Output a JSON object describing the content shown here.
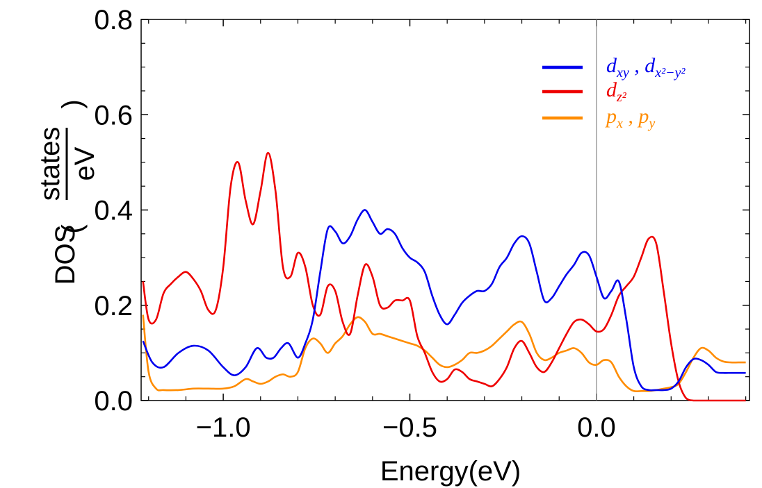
{
  "chart_data": {
    "type": "line",
    "title": "",
    "xlabel": "Energy(eV)",
    "ylabel": {
      "prefix": "DOS",
      "numerator": "states",
      "denominator": "eV"
    },
    "xlim": [
      -1.22,
      0.41
    ],
    "ylim": [
      0.0,
      0.8
    ],
    "x_ticks": [
      -1.0,
      -0.5,
      0.0
    ],
    "x_tick_labels": [
      "−1.0",
      "−0.5",
      "0.0"
    ],
    "y_ticks": [
      0.0,
      0.2,
      0.4,
      0.6,
      0.8
    ],
    "y_tick_labels": [
      "0.0",
      "0.2",
      "0.4",
      "0.6",
      "0.8"
    ],
    "fermi_level": 0.0,
    "legend_position": "top-right",
    "series": [
      {
        "name": "d_xy , d_x2-y2",
        "legend": {
          "main1": "d",
          "sub1": "xy",
          "sep": " , ",
          "main2": "d",
          "sub2": "x²−y²"
        },
        "color": "#0000ee",
        "x": [
          -1.215,
          -1.19,
          -1.16,
          -1.12,
          -1.08,
          -1.04,
          -1.0,
          -0.97,
          -0.94,
          -0.91,
          -0.885,
          -0.865,
          -0.845,
          -0.825,
          -0.8,
          -0.78,
          -0.76,
          -0.74,
          -0.72,
          -0.7,
          -0.68,
          -0.66,
          -0.64,
          -0.62,
          -0.6,
          -0.58,
          -0.56,
          -0.54,
          -0.52,
          -0.5,
          -0.48,
          -0.46,
          -0.44,
          -0.42,
          -0.4,
          -0.38,
          -0.36,
          -0.34,
          -0.32,
          -0.3,
          -0.28,
          -0.26,
          -0.24,
          -0.22,
          -0.2,
          -0.18,
          -0.16,
          -0.14,
          -0.12,
          -0.1,
          -0.08,
          -0.06,
          -0.04,
          -0.02,
          0.0,
          0.02,
          0.04,
          0.06,
          0.08,
          0.1,
          0.12,
          0.14,
          0.16,
          0.18,
          0.2,
          0.22,
          0.24,
          0.26,
          0.28,
          0.3,
          0.32,
          0.34,
          0.36,
          0.38,
          0.4
        ],
        "y": [
          0.125,
          0.08,
          0.07,
          0.1,
          0.115,
          0.105,
          0.07,
          0.053,
          0.07,
          0.11,
          0.09,
          0.09,
          0.11,
          0.12,
          0.09,
          0.12,
          0.17,
          0.27,
          0.36,
          0.355,
          0.33,
          0.345,
          0.38,
          0.4,
          0.375,
          0.35,
          0.36,
          0.35,
          0.32,
          0.3,
          0.29,
          0.27,
          0.22,
          0.18,
          0.16,
          0.18,
          0.205,
          0.22,
          0.23,
          0.23,
          0.245,
          0.28,
          0.3,
          0.33,
          0.345,
          0.33,
          0.27,
          0.21,
          0.215,
          0.24,
          0.265,
          0.285,
          0.31,
          0.305,
          0.26,
          0.215,
          0.23,
          0.25,
          0.17,
          0.07,
          0.03,
          0.022,
          0.022,
          0.022,
          0.025,
          0.04,
          0.07,
          0.087,
          0.085,
          0.075,
          0.06,
          0.058,
          0.058,
          0.058,
          0.058
        ]
      },
      {
        "name": "d_z2",
        "legend": {
          "main1": "d",
          "sub1": "z²",
          "sep": "",
          "main2": "",
          "sub2": ""
        },
        "color": "#ee0000",
        "x": [
          -1.215,
          -1.2,
          -1.18,
          -1.16,
          -1.14,
          -1.12,
          -1.1,
          -1.08,
          -1.06,
          -1.04,
          -1.02,
          -1.0,
          -0.98,
          -0.96,
          -0.94,
          -0.92,
          -0.9,
          -0.88,
          -0.86,
          -0.84,
          -0.82,
          -0.8,
          -0.78,
          -0.76,
          -0.74,
          -0.72,
          -0.7,
          -0.68,
          -0.66,
          -0.64,
          -0.62,
          -0.6,
          -0.58,
          -0.56,
          -0.54,
          -0.52,
          -0.5,
          -0.48,
          -0.46,
          -0.44,
          -0.42,
          -0.4,
          -0.38,
          -0.36,
          -0.34,
          -0.32,
          -0.3,
          -0.28,
          -0.26,
          -0.24,
          -0.22,
          -0.2,
          -0.18,
          -0.16,
          -0.14,
          -0.12,
          -0.1,
          -0.08,
          -0.06,
          -0.04,
          -0.02,
          0.0,
          0.02,
          0.04,
          0.06,
          0.08,
          0.1,
          0.12,
          0.14,
          0.16,
          0.18,
          0.2,
          0.22,
          0.24,
          0.26,
          0.28,
          0.3,
          0.32,
          0.34,
          0.36,
          0.38,
          0.4
        ],
        "y": [
          0.25,
          0.17,
          0.17,
          0.225,
          0.245,
          0.26,
          0.27,
          0.255,
          0.23,
          0.19,
          0.19,
          0.28,
          0.45,
          0.5,
          0.42,
          0.37,
          0.44,
          0.52,
          0.44,
          0.28,
          0.26,
          0.31,
          0.28,
          0.2,
          0.18,
          0.24,
          0.23,
          0.165,
          0.14,
          0.22,
          0.285,
          0.26,
          0.2,
          0.195,
          0.21,
          0.21,
          0.21,
          0.135,
          0.1,
          0.06,
          0.04,
          0.045,
          0.065,
          0.06,
          0.045,
          0.04,
          0.035,
          0.03,
          0.045,
          0.07,
          0.11,
          0.125,
          0.1,
          0.07,
          0.06,
          0.08,
          0.11,
          0.14,
          0.165,
          0.17,
          0.16,
          0.145,
          0.15,
          0.18,
          0.22,
          0.24,
          0.26,
          0.3,
          0.34,
          0.33,
          0.23,
          0.12,
          0.04,
          0.005,
          0.0,
          0.0,
          0.0,
          0.0,
          0.0,
          0.0,
          0.0,
          0.0
        ]
      },
      {
        "name": "p_x , p_y",
        "legend": {
          "main1": "p",
          "sub1": "x",
          "sep": " , ",
          "main2": "p",
          "sub2": "y"
        },
        "color": "#ff8c00",
        "x": [
          -1.215,
          -1.2,
          -1.18,
          -1.16,
          -1.12,
          -1.08,
          -1.04,
          -1.0,
          -0.97,
          -0.94,
          -0.92,
          -0.9,
          -0.88,
          -0.86,
          -0.84,
          -0.82,
          -0.8,
          -0.78,
          -0.76,
          -0.74,
          -0.72,
          -0.7,
          -0.68,
          -0.66,
          -0.64,
          -0.62,
          -0.6,
          -0.58,
          -0.56,
          -0.54,
          -0.52,
          -0.5,
          -0.48,
          -0.46,
          -0.44,
          -0.42,
          -0.4,
          -0.38,
          -0.36,
          -0.34,
          -0.32,
          -0.3,
          -0.28,
          -0.26,
          -0.24,
          -0.22,
          -0.2,
          -0.18,
          -0.16,
          -0.14,
          -0.12,
          -0.1,
          -0.08,
          -0.06,
          -0.04,
          -0.02,
          0.0,
          0.02,
          0.04,
          0.06,
          0.08,
          0.1,
          0.12,
          0.14,
          0.16,
          0.18,
          0.2,
          0.22,
          0.24,
          0.26,
          0.28,
          0.3,
          0.32,
          0.34,
          0.36,
          0.38,
          0.4
        ],
        "y": [
          0.18,
          0.06,
          0.025,
          0.022,
          0.022,
          0.025,
          0.025,
          0.025,
          0.03,
          0.045,
          0.04,
          0.035,
          0.04,
          0.05,
          0.055,
          0.05,
          0.06,
          0.11,
          0.13,
          0.12,
          0.1,
          0.12,
          0.135,
          0.16,
          0.175,
          0.165,
          0.14,
          0.14,
          0.135,
          0.13,
          0.125,
          0.12,
          0.115,
          0.105,
          0.09,
          0.075,
          0.07,
          0.075,
          0.085,
          0.1,
          0.1,
          0.105,
          0.115,
          0.13,
          0.145,
          0.16,
          0.165,
          0.14,
          0.1,
          0.085,
          0.09,
          0.1,
          0.105,
          0.11,
          0.1,
          0.08,
          0.075,
          0.085,
          0.08,
          0.05,
          0.03,
          0.02,
          0.02,
          0.02,
          0.022,
          0.025,
          0.028,
          0.035,
          0.06,
          0.09,
          0.11,
          0.105,
          0.09,
          0.082,
          0.08,
          0.08,
          0.08
        ]
      }
    ]
  }
}
